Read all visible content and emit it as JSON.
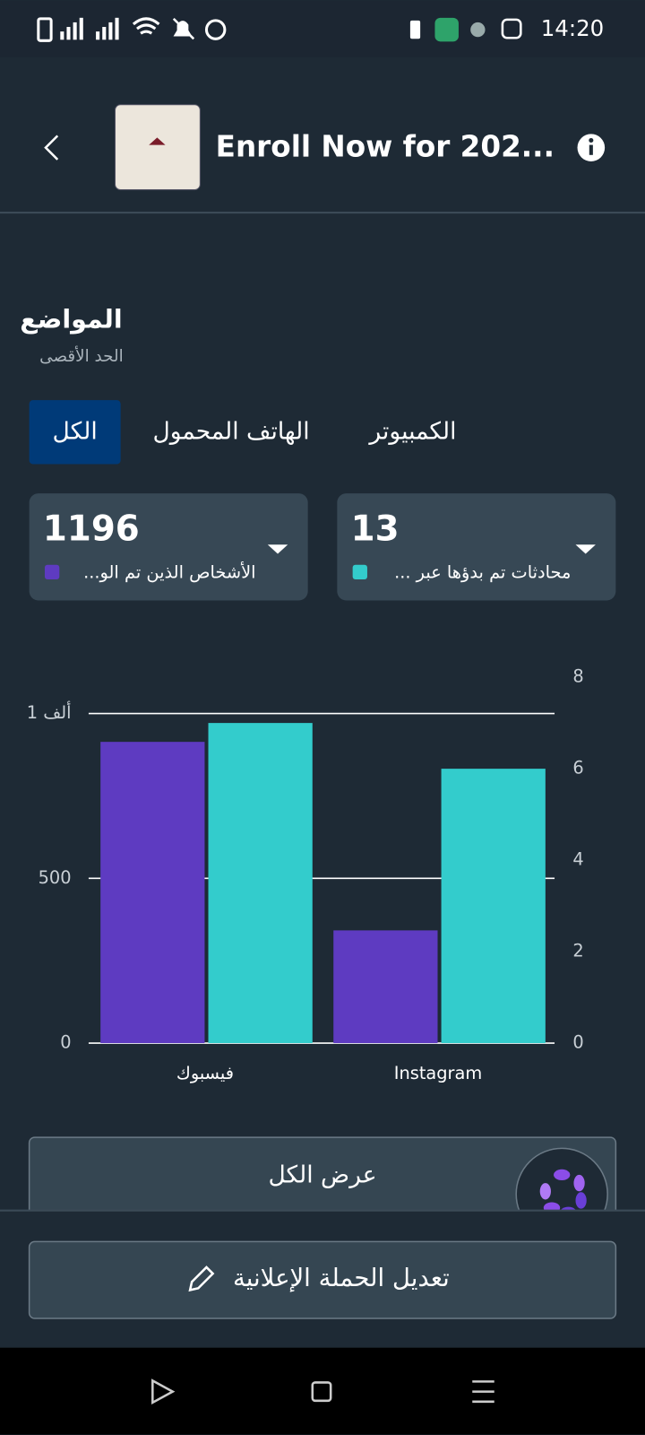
{
  "status_bar": {
    "time": "14:20"
  },
  "header": {
    "title": "Enroll Now for 202..."
  },
  "section": {
    "title": "المواضع",
    "subtitle": "الحد الأقصى"
  },
  "tabs": [
    "الكل",
    "الهاتف المحمول",
    "الكمبيوتر"
  ],
  "metrics": [
    {
      "value": 1196
    },
    {
      "value": 13
    }
  ],
  "chart_data": {
    "type": "bar",
    "categories": [
      "فيسبوك",
      "Instagram"
    ],
    "series": [
      {
        "name": "الأشخاص الذين تم الو...",
        "color": "#5e3bc1",
        "values": [
          914,
          342
        ]
      },
      {
        "name": "محادثات تم بدؤها عبر ...",
        "color": "#33cccc",
        "values": [
          7,
          6
        ],
        "axis": "y2"
      }
    ],
    "ylim": [
      0,
      1110
    ],
    "yticks": [
      0,
      500,
      {
        "value": 1000,
        "label": "1 ألف"
      }
    ],
    "y2lim": [
      0,
      8
    ],
    "y2ticks": [
      0,
      2,
      4,
      6,
      8
    ],
    "grid": true
  },
  "buttons": {
    "view_all": "عرض الكل",
    "edit": "تعديل الحملة الإعلانية"
  }
}
